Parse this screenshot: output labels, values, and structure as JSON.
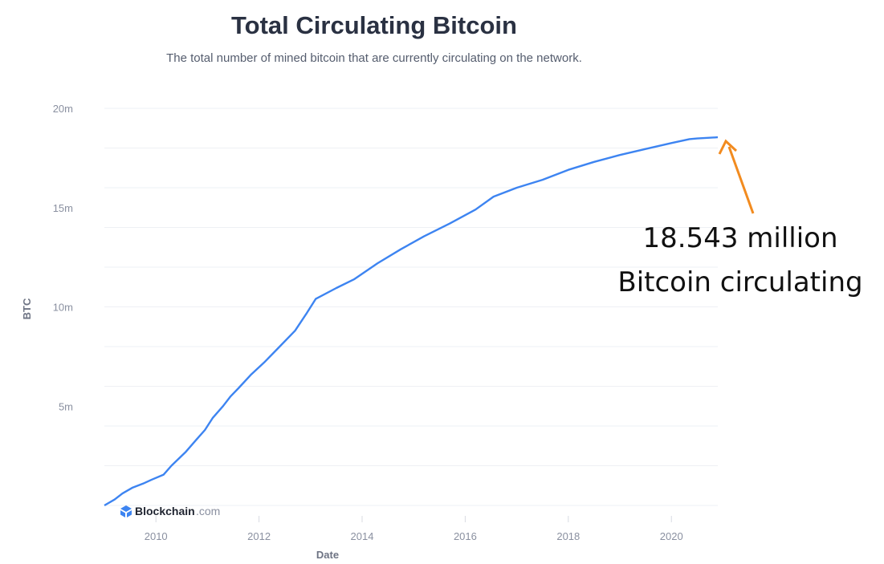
{
  "chart_data": {
    "type": "line",
    "title": "Total Circulating Bitcoin",
    "subtitle": "The total number of mined bitcoin that are currently circulating on the network.",
    "xlabel": "Date",
    "ylabel": "BTC",
    "xlim": [
      2009.0,
      2020.9
    ],
    "ylim": [
      0,
      20000000
    ],
    "x_ticks": [
      2010,
      2012,
      2014,
      2016,
      2018,
      2020
    ],
    "x_tick_labels": [
      "2010",
      "2012",
      "2014",
      "2016",
      "2018",
      "2020"
    ],
    "y_ticks": [
      5000000,
      10000000,
      15000000,
      20000000
    ],
    "y_tick_labels": [
      "5m",
      "10m",
      "15m",
      "20m"
    ],
    "grid": true,
    "series": [
      {
        "color": "#3d84f1",
        "x": [
          2009.0,
          2009.2,
          2009.35,
          2009.55,
          2009.75,
          2009.92,
          2010.15,
          2010.3,
          2010.5,
          2010.58,
          2010.78,
          2010.95,
          2011.1,
          2011.3,
          2011.45,
          2011.6,
          2011.85,
          2012.1,
          2012.4,
          2012.7,
          2012.93,
          2013.1,
          2013.5,
          2013.85,
          2014.3,
          2014.75,
          2015.2,
          2015.7,
          2016.2,
          2016.55,
          2017.0,
          2017.5,
          2018.0,
          2018.5,
          2019.0,
          2019.5,
          2020.0,
          2020.35,
          2020.5,
          2020.9
        ],
        "values": [
          0,
          300000,
          600000,
          900000,
          1100000,
          1300000,
          1550000,
          2000000,
          2500000,
          2700000,
          3300000,
          3800000,
          4400000,
          5000000,
          5500000,
          5900000,
          6600000,
          7200000,
          8000000,
          8800000,
          9700000,
          10400000,
          10950000,
          11400000,
          12200000,
          12900000,
          13550000,
          14200000,
          14900000,
          15550000,
          16000000,
          16400000,
          16900000,
          17300000,
          17650000,
          17950000,
          18250000,
          18450000,
          18480000,
          18543000
        ]
      }
    ]
  },
  "annotation": {
    "line1": "18.543 million",
    "line2": "Bitcoin circulating",
    "arrow_color": "#f28b1f"
  },
  "watermark": {
    "brand": "Blockchain",
    "suffix": ".com",
    "logo_color": "#3d84f1"
  }
}
